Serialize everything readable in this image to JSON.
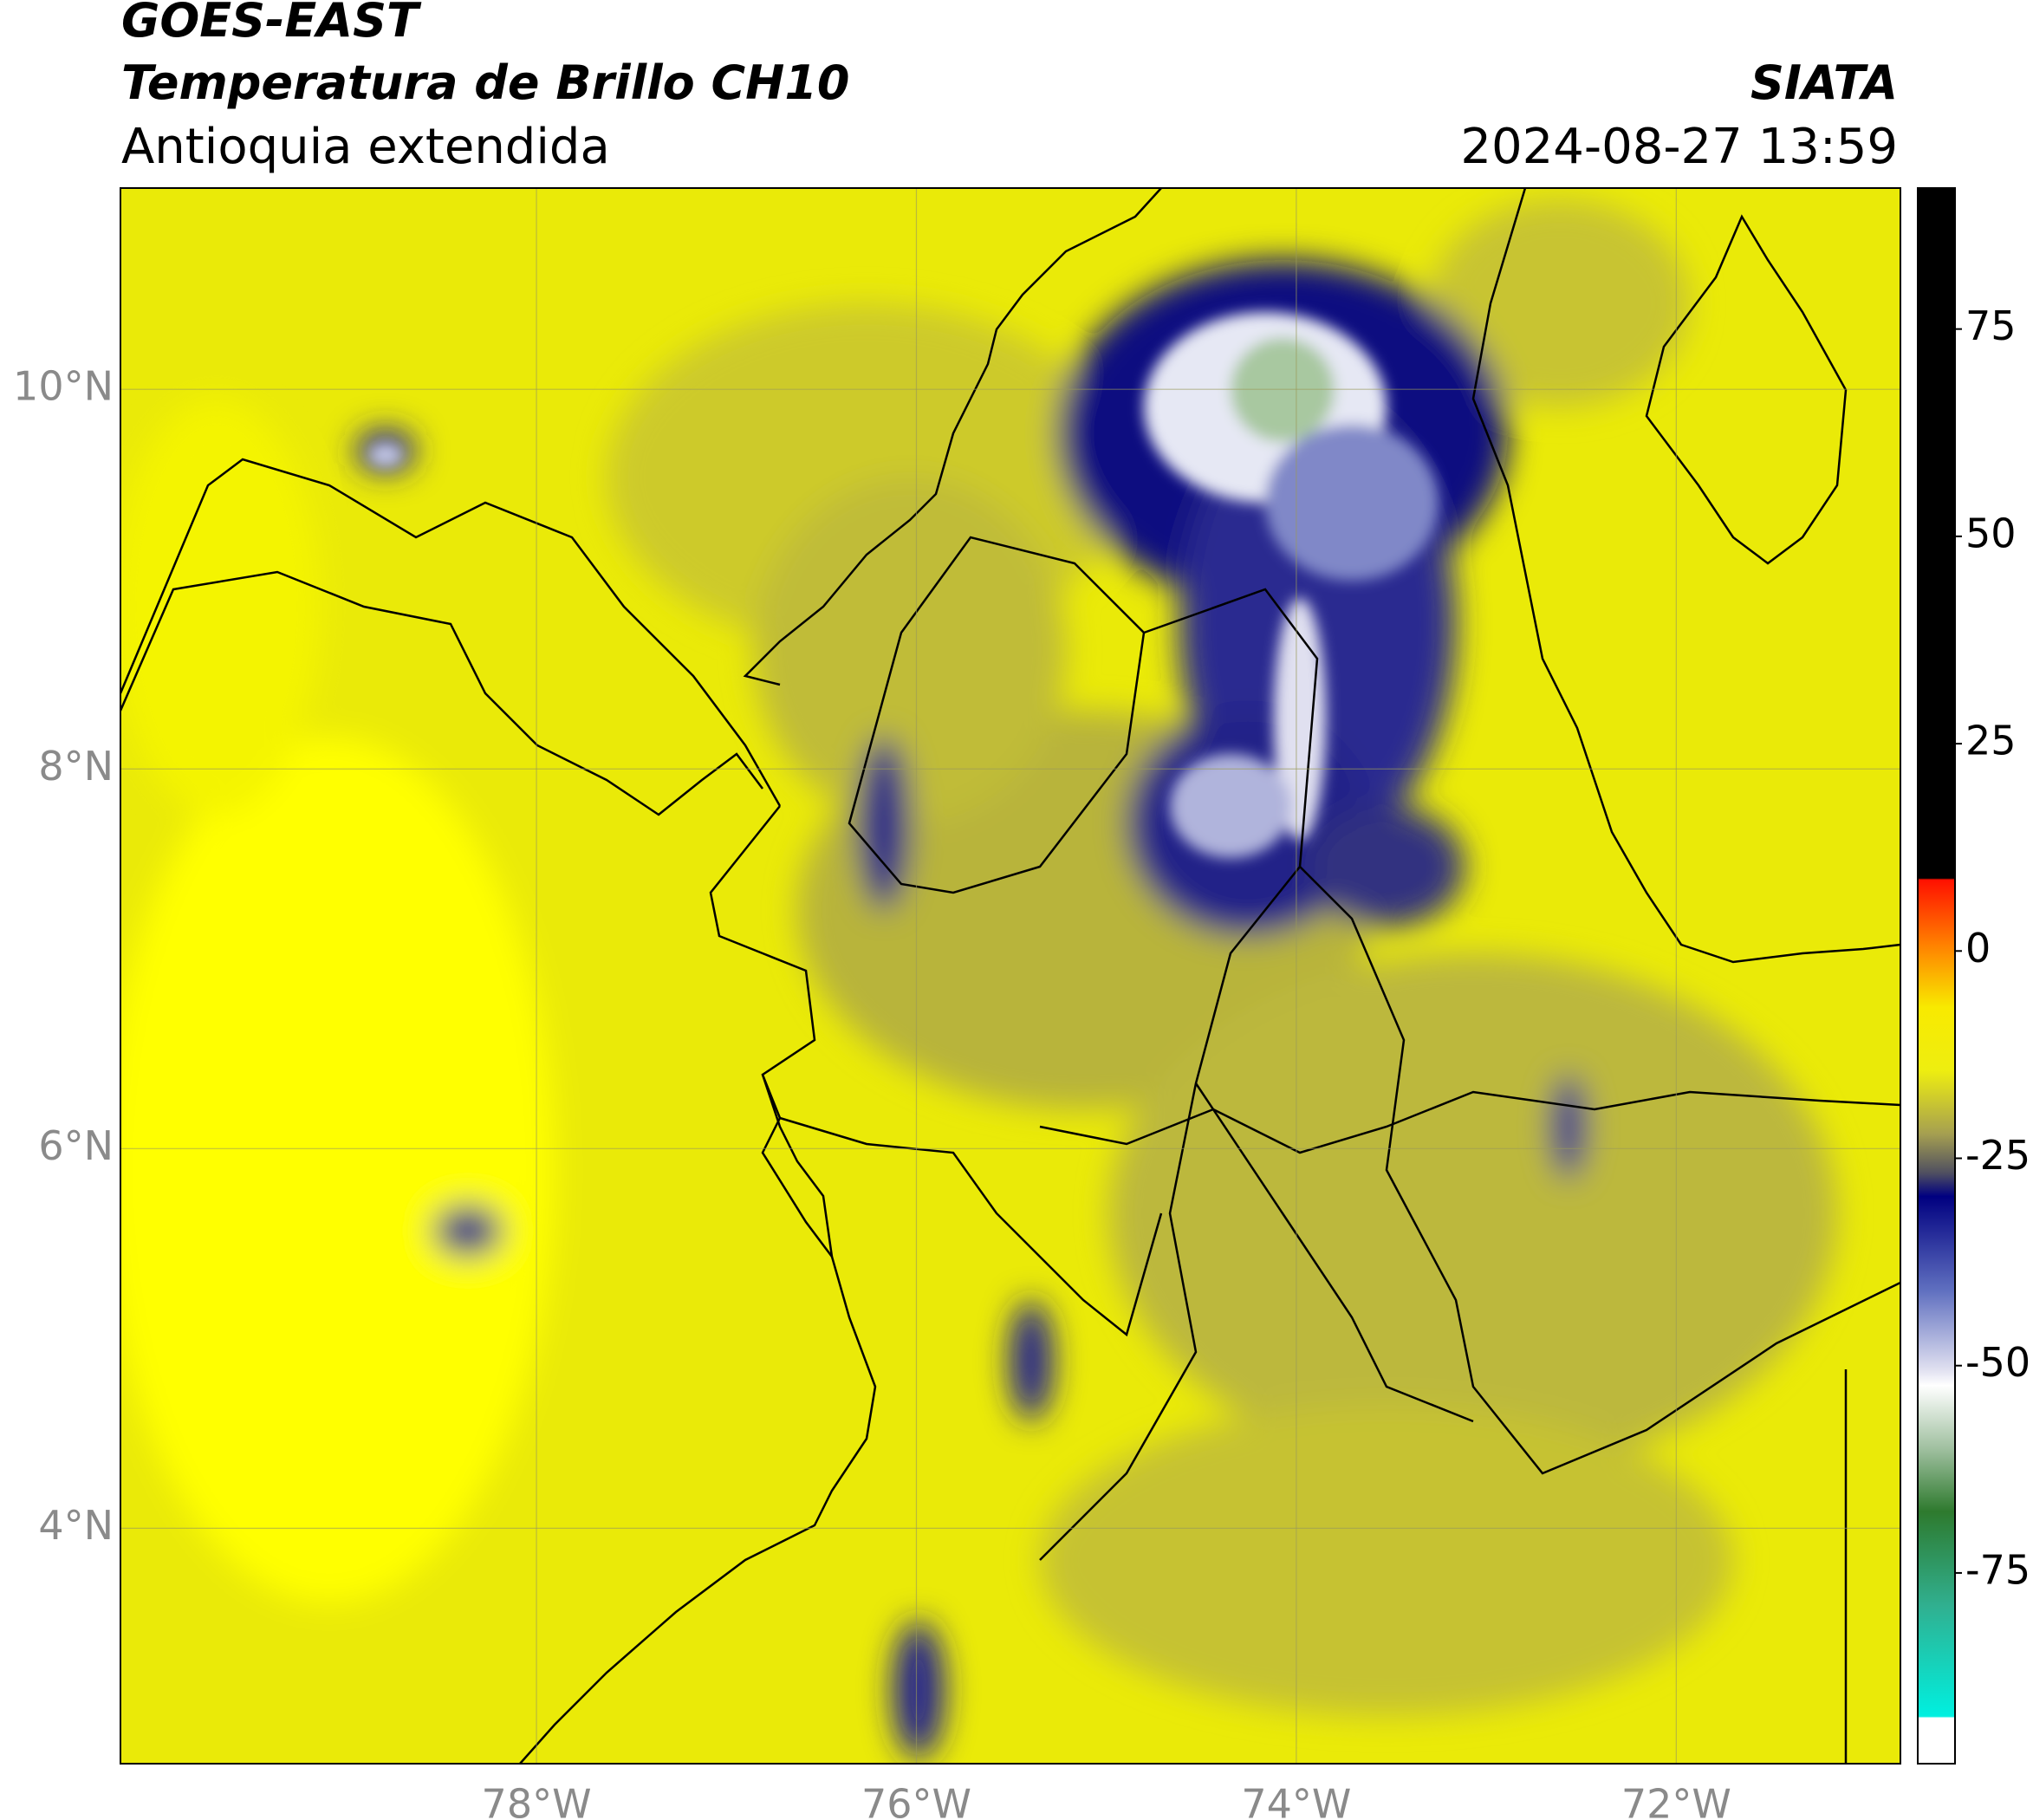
{
  "header": {
    "title": "GOES-EAST",
    "subtitle": "Temperatura de Brillo CH10",
    "region": "Antioquia extendida",
    "source": "SIATA",
    "datetime": "2024-08-27 13:59"
  },
  "map": {
    "lonlim": [
      -80.19,
      -70.82
    ],
    "latlim": [
      2.76,
      11.06
    ],
    "lonticks": [
      {
        "value": -78,
        "label": "78°W"
      },
      {
        "value": -76,
        "label": "76°W"
      },
      {
        "value": -74,
        "label": "74°W"
      },
      {
        "value": -72,
        "label": "72°W"
      }
    ],
    "latticks": [
      {
        "value": 4,
        "label": "4°N"
      },
      {
        "value": 6,
        "label": "6°N"
      },
      {
        "value": 8,
        "label": "8°N"
      },
      {
        "value": 10,
        "label": "10°N"
      }
    ],
    "grid": true
  },
  "colorbar": {
    "lim": [
      -98,
      92
    ],
    "ticks": [
      -75,
      -50,
      -25,
      0,
      25,
      50,
      75
    ]
  }
}
